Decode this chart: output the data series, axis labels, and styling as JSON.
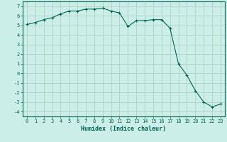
{
  "title": "",
  "xlabel": "Humidex (Indice chaleur)",
  "bg_color": "#cceee8",
  "line_color": "#006655",
  "grid_color": "#aaccbb",
  "x_values": [
    0,
    1,
    2,
    3,
    4,
    5,
    6,
    7,
    8,
    9,
    10,
    11,
    12,
    13,
    14,
    15,
    16,
    17,
    18,
    19,
    20,
    21,
    22,
    23
  ],
  "y_values": [
    5.1,
    5.3,
    5.6,
    5.8,
    6.2,
    6.5,
    6.5,
    6.7,
    6.7,
    6.8,
    6.5,
    6.3,
    4.9,
    5.5,
    5.5,
    5.6,
    5.6,
    4.7,
    1.0,
    -0.2,
    -1.8,
    -3.0,
    -3.5,
    -3.2
  ],
  "ylim": [
    -4.5,
    7.5
  ],
  "xlim": [
    -0.5,
    23.5
  ],
  "yticks": [
    -4,
    -3,
    -2,
    -1,
    0,
    1,
    2,
    3,
    4,
    5,
    6,
    7
  ],
  "xticks": [
    0,
    1,
    2,
    3,
    4,
    5,
    6,
    7,
    8,
    9,
    10,
    11,
    12,
    13,
    14,
    15,
    16,
    17,
    18,
    19,
    20,
    21,
    22,
    23
  ],
  "tick_fontsize": 5,
  "xlabel_fontsize": 6
}
